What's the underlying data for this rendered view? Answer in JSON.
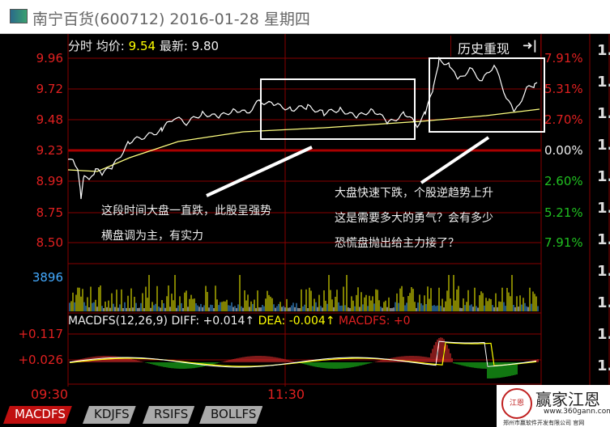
{
  "window": {
    "title": "南宁百货(600712) 2016-01-28 星期四"
  },
  "header": {
    "mode": "分时",
    "avg_label": "均价:",
    "avg": "9.54",
    "last_label": "最新:",
    "last": "9.80"
  },
  "history_button": "历史重现",
  "history_icon": "skip-end-icon",
  "price_axis": [
    "9.96",
    "9.72",
    "9.48",
    "9.23",
    "8.99",
    "8.75",
    "8.50"
  ],
  "pct_axis": [
    {
      "t": "7.91%",
      "c": "red"
    },
    {
      "t": "5.31%",
      "c": "red"
    },
    {
      "t": "2.70%",
      "c": "red"
    },
    {
      "t": "0.00%",
      "c": "white"
    },
    {
      "t": "2.60%",
      "c": "green"
    },
    {
      "t": "5.21%",
      "c": "green"
    },
    {
      "t": "7.91%",
      "c": "green"
    }
  ],
  "volume_label": "3896",
  "macd": {
    "name": "MACDFS(12,26,9)",
    "diff": "DIFF: +0.014↑",
    "dea": "DEA: -0.004↑",
    "macdfs": "MACDFS: +0",
    "axis": [
      "+0.117",
      "+0.026"
    ]
  },
  "time_axis": [
    "09:30",
    "11:30"
  ],
  "annotations": {
    "left": [
      "这段时间大盘一直跌，此股呈强势",
      "横盘调为主，有实力"
    ],
    "right": [
      "大盘快速下跌，个股逆趋势上升",
      "这是需要多大的勇气？会有多少",
      "恐慌盘抛出给主力接了？"
    ]
  },
  "tabs": [
    {
      "label": "MACDFS",
      "active": true
    },
    {
      "label": "KDJFS"
    },
    {
      "label": "RSIFS"
    },
    {
      "label": "BOLLFS"
    }
  ],
  "watermark": {
    "name": "赢家江恩",
    "url": "www.360gann.com",
    "company": "郑州市赢软件开发有限公司 官网"
  },
  "colors": {
    "up": "#e02020",
    "down": "#20c020",
    "avg": "#ffff80"
  }
}
